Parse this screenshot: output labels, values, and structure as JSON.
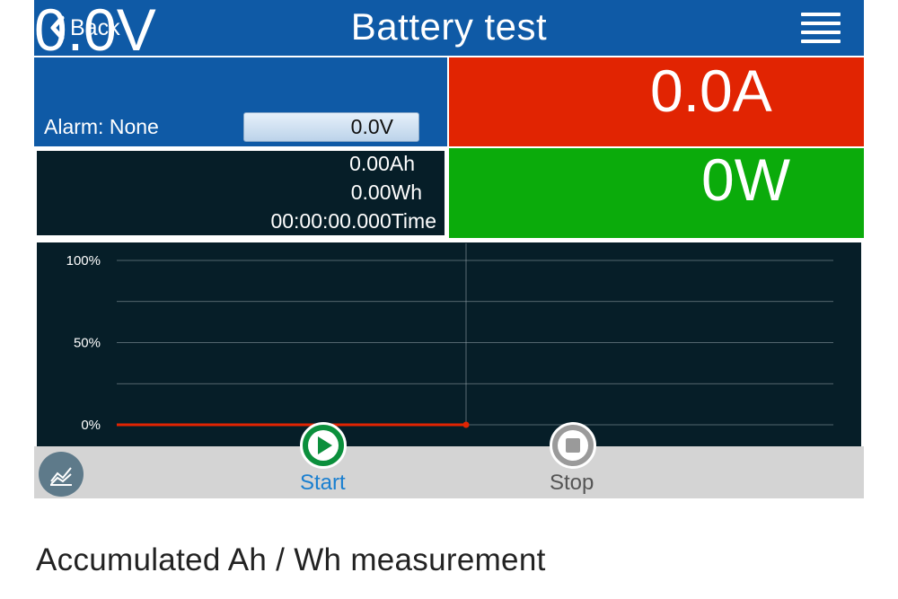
{
  "header": {
    "back_label": "Back",
    "title": "Battery test"
  },
  "voltage": {
    "value": "0.0V",
    "alarm": "Alarm: None",
    "setpoint": "0.0V"
  },
  "current": {
    "value": "0.0A"
  },
  "power": {
    "value": "0W"
  },
  "energy": {
    "ah": "0.00Ah",
    "wh": "0.00Wh",
    "time": "00:00:00.000Time"
  },
  "chart_data": {
    "type": "line",
    "x": [
      0,
      1
    ],
    "series": [
      {
        "values": [
          0,
          0
        ],
        "color": "#e12402"
      }
    ],
    "y_ticks": [
      "100%",
      "50%",
      "0%"
    ],
    "ylim": [
      0,
      100
    ],
    "grid": true
  },
  "controls": {
    "start_label": "Start",
    "stop_label": "Stop"
  },
  "caption": "Accumulated Ah / Wh measurement",
  "colors": {
    "header": "#0f5aa6",
    "voltage": "#0f5aa6",
    "current": "#e12402",
    "power": "#0bab0b",
    "chart_bg": "#061e28",
    "start": "#0b8f3c",
    "stop": "#9a9a9a"
  },
  "icons": {
    "back": "chevron-left-icon",
    "menu": "hamburger-menu-icon",
    "graph": "graph-icon",
    "start": "play-icon",
    "stop": "stop-icon"
  }
}
